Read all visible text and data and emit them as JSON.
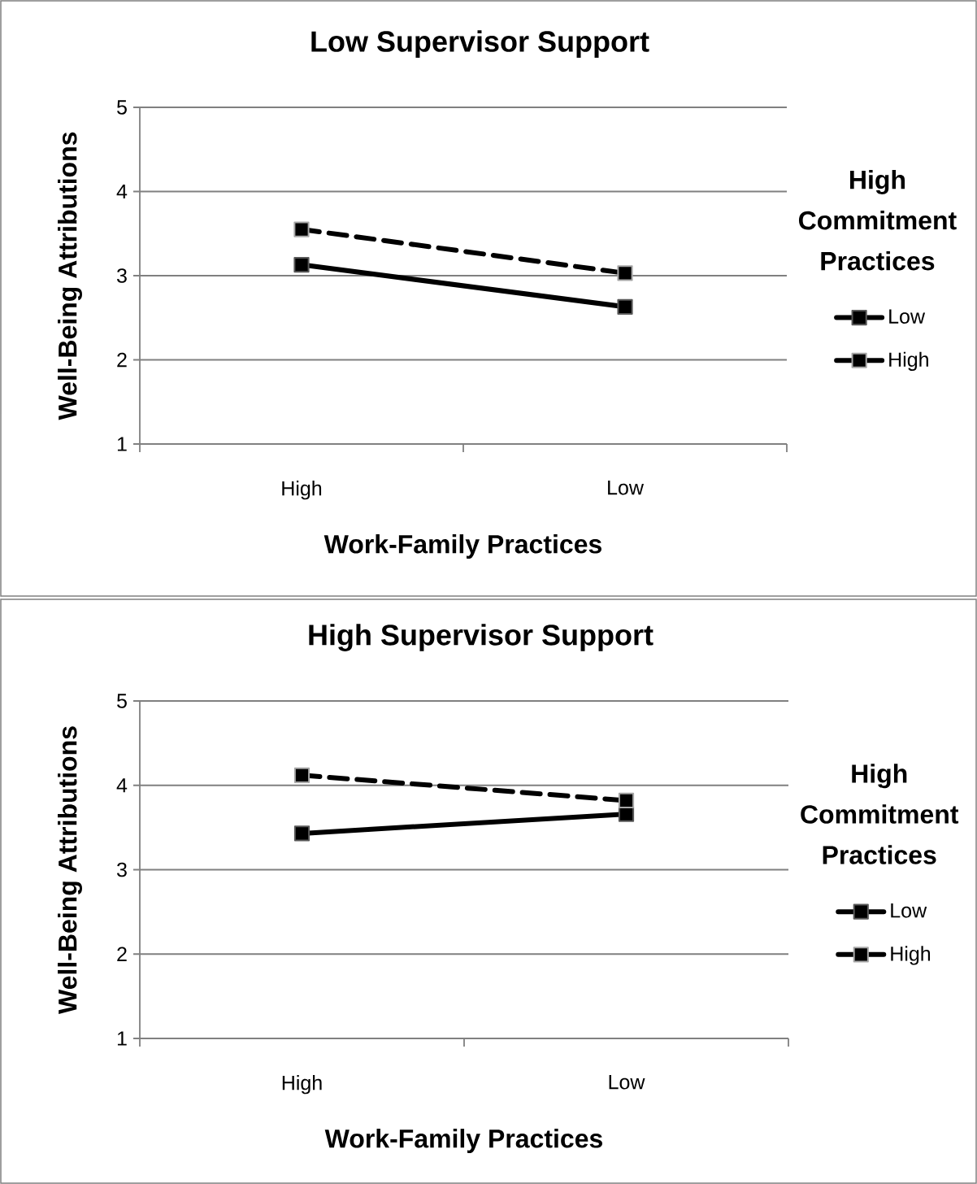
{
  "chart_data": [
    {
      "type": "line",
      "title": "Low Supervisor Support",
      "xlabel": "Work-Family Practices",
      "ylabel": "Well-Being Attributions",
      "legend_title": "High Commitment Practices",
      "categories": [
        "High",
        "Low"
      ],
      "series": [
        {
          "name": "Low",
          "color": "#000000",
          "line_style": "solid",
          "values": [
            3.13,
            2.63
          ]
        },
        {
          "name": "High",
          "color": "#000000",
          "line_style": "dashed",
          "values": [
            3.55,
            3.03
          ]
        }
      ],
      "ylim": [
        1,
        5
      ],
      "yticks": [
        1,
        2,
        3,
        4,
        5
      ],
      "grid": "y",
      "legend": "right",
      "marker": "square"
    },
    {
      "type": "line",
      "title": "High Supervisor Support",
      "xlabel": "Work-Family Practices",
      "ylabel": "Well-Being Attributions",
      "legend_title": "High Commitment Practices",
      "categories": [
        "High",
        "Low"
      ],
      "series": [
        {
          "name": "Low",
          "color": "#000000",
          "line_style": "solid",
          "values": [
            3.43,
            3.66
          ]
        },
        {
          "name": "High",
          "color": "#000000",
          "line_style": "dashed",
          "values": [
            4.12,
            3.82
          ]
        }
      ],
      "ylim": [
        1,
        5
      ],
      "yticks": [
        1,
        2,
        3,
        4,
        5
      ],
      "grid": "y",
      "legend": "right",
      "marker": "square"
    }
  ]
}
